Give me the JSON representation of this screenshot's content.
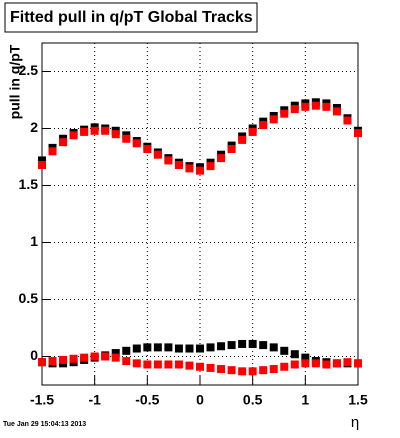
{
  "chart_data": {
    "type": "scatter",
    "title": "Fitted pull in q/pT  Global Tracks",
    "y_label": "pull in q/pT",
    "x_label": "η",
    "timestamp": "Tue Jan 29 15:04:13 2013",
    "x": [
      -1.5,
      -1.4,
      -1.3,
      -1.2,
      -1.1,
      -1.0,
      -0.9,
      -0.8,
      -0.7,
      -0.6,
      -0.5,
      -0.4,
      -0.3,
      -0.2,
      -0.1,
      0,
      0.1,
      0.2,
      0.3,
      0.4,
      0.5,
      0.6,
      0.7,
      0.8,
      0.9,
      1.0,
      1.1,
      1.2,
      1.3,
      1.4,
      1.5
    ],
    "series": [
      {
        "color": "#000000",
        "values": [
          1.72,
          1.83,
          1.91,
          1.96,
          1.99,
          2.01,
          2.0,
          1.98,
          1.94,
          1.89,
          1.84,
          1.79,
          1.74,
          1.7,
          1.67,
          1.66,
          1.7,
          1.77,
          1.85,
          1.93,
          2.0,
          2.06,
          2.11,
          2.16,
          2.2,
          2.22,
          2.23,
          2.22,
          2.18,
          2.09,
          1.98
        ]
      },
      {
        "color": "#000000",
        "values": [
          -0.05,
          -0.06,
          -0.06,
          -0.05,
          -0.03,
          -0.01,
          0.01,
          0.03,
          0.05,
          0.07,
          0.08,
          0.08,
          0.08,
          0.07,
          0.07,
          0.07,
          0.08,
          0.09,
          0.1,
          0.11,
          0.11,
          0.1,
          0.08,
          0.05,
          0.02,
          -0.01,
          -0.04,
          -0.05,
          -0.06,
          -0.06,
          -0.06
        ]
      },
      {
        "color": "#ff0000",
        "values": [
          1.68,
          1.8,
          1.88,
          1.94,
          1.97,
          1.98,
          1.98,
          1.95,
          1.91,
          1.87,
          1.82,
          1.77,
          1.72,
          1.68,
          1.65,
          1.63,
          1.67,
          1.74,
          1.82,
          1.9,
          1.97,
          2.03,
          2.08,
          2.13,
          2.17,
          2.19,
          2.2,
          2.19,
          2.15,
          2.07,
          1.96
        ]
      },
      {
        "color": "#ff0000",
        "values": [
          -0.05,
          -0.04,
          -0.03,
          -0.02,
          -0.01,
          0.0,
          0.0,
          -0.01,
          -0.04,
          -0.06,
          -0.07,
          -0.07,
          -0.07,
          -0.07,
          -0.08,
          -0.09,
          -0.1,
          -0.11,
          -0.12,
          -0.13,
          -0.13,
          -0.12,
          -0.11,
          -0.09,
          -0.07,
          -0.06,
          -0.06,
          -0.07,
          -0.06,
          -0.05,
          -0.06
        ]
      }
    ],
    "xlim": [
      -1.5,
      1.5
    ],
    "ylim": [
      -0.25,
      2.75
    ],
    "xticks": [
      -1.5,
      -1,
      -0.5,
      0,
      0.5,
      1,
      1.5
    ],
    "yticks": [
      0,
      0.5,
      1,
      1.5,
      2,
      2.5
    ],
    "grid": true
  }
}
